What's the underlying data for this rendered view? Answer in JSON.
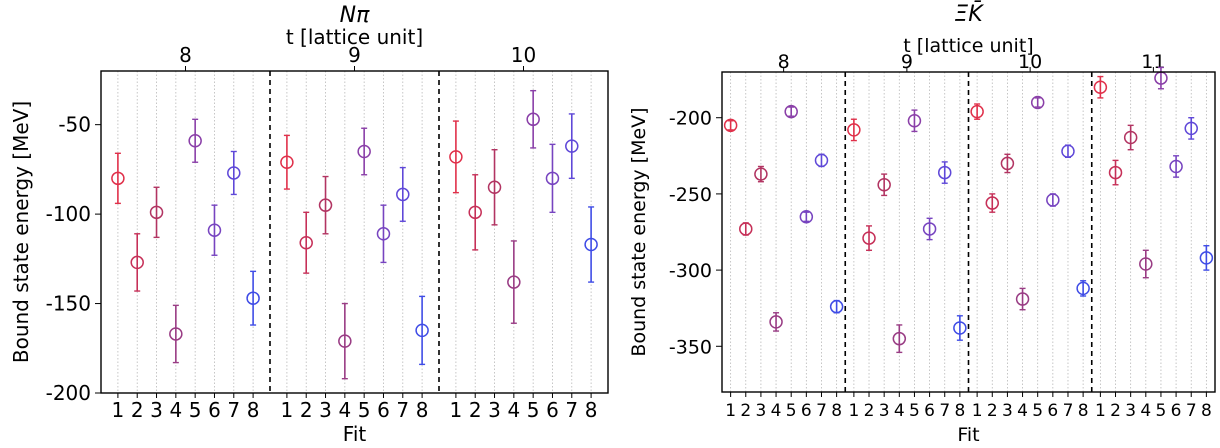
{
  "chart_data": [
    {
      "type": "scatter",
      "title": "Nπ",
      "xlabel": "Fit",
      "ylabel": "Bound state energy [MeV]",
      "top_axis_label": "t [lattice unit]",
      "ylim": [
        -200,
        -20
      ],
      "yticks": [
        -200,
        -150,
        -100,
        -50
      ],
      "panels": [
        {
          "t": "8",
          "fits": [
            "1",
            "2",
            "3",
            "4",
            "5",
            "6",
            "7",
            "8"
          ],
          "values": [
            -80,
            -127,
            -99,
            -167,
            -59,
            -109,
            -77,
            -147
          ],
          "errors": [
            14,
            16,
            14,
            16,
            12,
            14,
            12,
            15
          ]
        },
        {
          "t": "9",
          "fits": [
            "1",
            "2",
            "3",
            "4",
            "5",
            "6",
            "7",
            "8"
          ],
          "values": [
            -71,
            -116,
            -95,
            -171,
            -65,
            -111,
            -89,
            -165
          ],
          "errors": [
            15,
            17,
            16,
            21,
            13,
            16,
            15,
            19
          ]
        },
        {
          "t": "10",
          "fits": [
            "1",
            "2",
            "3",
            "4",
            "5",
            "6",
            "7",
            "8"
          ],
          "values": [
            -68,
            -99,
            -85,
            -138,
            -47,
            -80,
            -62,
            -117
          ],
          "errors": [
            20,
            21,
            21,
            23,
            16,
            19,
            18,
            21
          ]
        }
      ],
      "colors": [
        "#e0304a",
        "#c63058",
        "#b23462",
        "#993c84",
        "#8a3fa8",
        "#7744c0",
        "#5f48d8",
        "#3f4ce6"
      ],
      "grid": "vertical dotted"
    },
    {
      "type": "scatter",
      "title": "ΞK̄",
      "xlabel": "Fit",
      "ylabel": "Bound state energy [MeV]",
      "top_axis_label": "t [lattice unit]",
      "ylim": [
        -380,
        -170
      ],
      "yticks": [
        -350,
        -300,
        -250,
        -200
      ],
      "panels": [
        {
          "t": "8",
          "fits": [
            "1",
            "2",
            "3",
            "4",
            "5",
            "6",
            "7",
            "8"
          ],
          "values": [
            -205,
            -273,
            -237,
            -334,
            -196,
            -265,
            -228,
            -324
          ],
          "errors": [
            3,
            4,
            5,
            6,
            3,
            3,
            4,
            4
          ]
        },
        {
          "t": "9",
          "fits": [
            "1",
            "2",
            "3",
            "4",
            "5",
            "6",
            "7",
            "8"
          ],
          "values": [
            -208,
            -279,
            -244,
            -345,
            -202,
            -273,
            -236,
            -338
          ],
          "errors": [
            7,
            8,
            7,
            9,
            7,
            7,
            7,
            8
          ]
        },
        {
          "t": "10",
          "fits": [
            "1",
            "2",
            "3",
            "4",
            "5",
            "6",
            "7",
            "8"
          ],
          "values": [
            -196,
            -256,
            -230,
            -319,
            -190,
            -254,
            -222,
            -312
          ],
          "errors": [
            5,
            6,
            6,
            7,
            3,
            4,
            4,
            5
          ]
        },
        {
          "t": "11",
          "fits": [
            "1",
            "2",
            "3",
            "4",
            "5",
            "6",
            "7",
            "8"
          ],
          "values": [
            -180,
            -236,
            -213,
            -296,
            -174,
            -232,
            -207,
            -292
          ],
          "errors": [
            7,
            8,
            8,
            9,
            7,
            7,
            7,
            8
          ]
        }
      ],
      "colors": [
        "#e0304a",
        "#c63058",
        "#b23462",
        "#993c84",
        "#8a3fa8",
        "#7744c0",
        "#5f48d8",
        "#3f4ce6"
      ],
      "grid": "vertical dotted"
    }
  ]
}
